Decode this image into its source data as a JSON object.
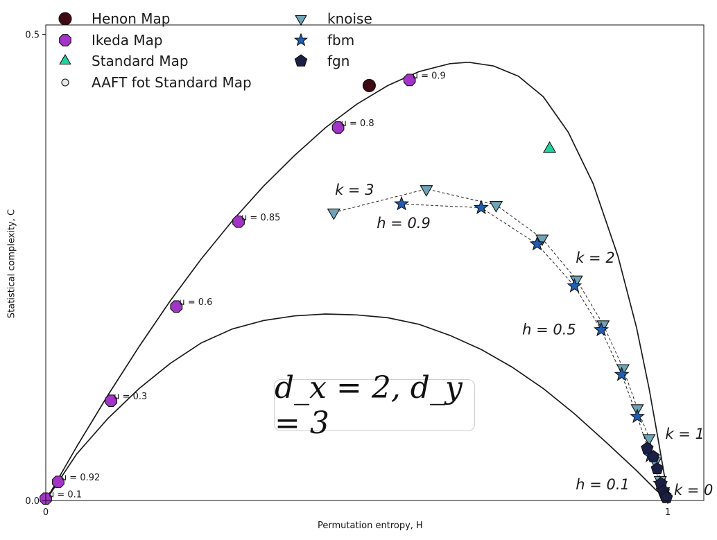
{
  "chart_data": {
    "type": "scatter",
    "xlabel": "Permutation entropy, H",
    "ylabel": "Statistical complexity, C",
    "xlim": [
      0.0,
      1.058
    ],
    "ylim": [
      0.0,
      0.51
    ],
    "xticks": [
      "0",
      "1"
    ],
    "yticks": [
      "0.0",
      "0.5"
    ],
    "grid": false,
    "legend_position": "top-left, two columns",
    "annotation_box": "d_x = 2, d_y = 3",
    "colors": {
      "henon": "#3d0a14",
      "ikeda": "#a334c8",
      "standard": "#1fd3a0",
      "aaft": "#e8e8e8",
      "knoise": "#6fa3b6",
      "fbm": "#1f5eb4",
      "fgn": "#1c1f45",
      "curve": "#1a1a1a"
    },
    "series": [
      {
        "name": "Henon Map",
        "marker": "circle",
        "points": [
          {
            "x": 0.52,
            "y": 0.445
          }
        ]
      },
      {
        "name": "Ikeda Map",
        "marker": "octagon",
        "points": [
          {
            "x": 0.0,
            "y": 0.002,
            "label": "u = 0.1"
          },
          {
            "x": 0.02,
            "y": 0.02,
            "label": "u = 0.92"
          },
          {
            "x": 0.105,
            "y": 0.107,
            "label": "u = 0.3"
          },
          {
            "x": 0.21,
            "y": 0.208,
            "label": "u = 0.6"
          },
          {
            "x": 0.31,
            "y": 0.299,
            "label": "u = 0.85"
          },
          {
            "x": 0.47,
            "y": 0.4,
            "label": "u = 0.8"
          },
          {
            "x": 0.585,
            "y": 0.451,
            "label": "u = 0.9"
          }
        ]
      },
      {
        "name": "Standard Map",
        "marker": "triangle-up",
        "points": [
          {
            "x": 0.81,
            "y": 0.377
          }
        ]
      },
      {
        "name": "AAFT fot Standard Map",
        "marker": "small-circle",
        "points": []
      },
      {
        "name": "knoise",
        "marker": "triangle-down",
        "connected": true,
        "points": [
          {
            "x": 0.463,
            "y": 0.309
          },
          {
            "x": 0.612,
            "y": 0.334
          },
          {
            "x": 0.724,
            "y": 0.317
          },
          {
            "x": 0.798,
            "y": 0.281
          },
          {
            "x": 0.853,
            "y": 0.237
          },
          {
            "x": 0.896,
            "y": 0.189
          },
          {
            "x": 0.928,
            "y": 0.142
          },
          {
            "x": 0.951,
            "y": 0.099
          },
          {
            "x": 0.97,
            "y": 0.067
          },
          {
            "x": 0.98,
            "y": 0.042
          },
          {
            "x": 0.988,
            "y": 0.022
          },
          {
            "x": 0.993,
            "y": 0.01
          }
        ]
      },
      {
        "name": "fbm",
        "marker": "star",
        "connected": true,
        "points": [
          {
            "x": 0.572,
            "y": 0.318
          },
          {
            "x": 0.7,
            "y": 0.314
          },
          {
            "x": 0.79,
            "y": 0.275
          },
          {
            "x": 0.85,
            "y": 0.23
          },
          {
            "x": 0.893,
            "y": 0.183
          },
          {
            "x": 0.926,
            "y": 0.135
          },
          {
            "x": 0.951,
            "y": 0.09
          },
          {
            "x": 0.972,
            "y": 0.048
          },
          {
            "x": 0.988,
            "y": 0.018
          }
        ]
      },
      {
        "name": "fgn",
        "marker": "pentagon",
        "points": [
          {
            "x": 0.967,
            "y": 0.056
          },
          {
            "x": 0.977,
            "y": 0.047
          },
          {
            "x": 0.983,
            "y": 0.034
          },
          {
            "x": 0.989,
            "y": 0.018
          },
          {
            "x": 0.993,
            "y": 0.01
          },
          {
            "x": 0.996,
            "y": 0.005
          },
          {
            "x": 0.998,
            "y": 0.003
          }
        ]
      }
    ],
    "curves": [
      {
        "label": "upper complexity bound",
        "points": [
          [
            0.0,
            0.0
          ],
          [
            0.05,
            0.058
          ],
          [
            0.1,
            0.113
          ],
          [
            0.15,
            0.165
          ],
          [
            0.2,
            0.214
          ],
          [
            0.25,
            0.259
          ],
          [
            0.3,
            0.3
          ],
          [
            0.35,
            0.337
          ],
          [
            0.4,
            0.37
          ],
          [
            0.45,
            0.4
          ],
          [
            0.5,
            0.425
          ],
          [
            0.55,
            0.445
          ],
          [
            0.6,
            0.46
          ],
          [
            0.65,
            0.4685
          ],
          [
            0.68,
            0.47
          ],
          [
            0.72,
            0.466
          ],
          [
            0.76,
            0.455
          ],
          [
            0.8,
            0.433
          ],
          [
            0.84,
            0.395
          ],
          [
            0.88,
            0.34
          ],
          [
            0.92,
            0.262
          ],
          [
            0.95,
            0.185
          ],
          [
            0.97,
            0.12
          ],
          [
            0.985,
            0.064
          ],
          [
            0.995,
            0.025
          ],
          [
            1.0,
            0.0
          ]
        ]
      },
      {
        "label": "lower complexity bound",
        "points": [
          [
            0.0,
            0.0
          ],
          [
            0.05,
            0.05
          ],
          [
            0.1,
            0.088
          ],
          [
            0.15,
            0.12
          ],
          [
            0.2,
            0.147
          ],
          [
            0.25,
            0.169
          ],
          [
            0.3,
            0.184
          ],
          [
            0.35,
            0.193
          ],
          [
            0.4,
            0.198
          ],
          [
            0.45,
            0.2
          ],
          [
            0.5,
            0.199
          ],
          [
            0.55,
            0.196
          ],
          [
            0.6,
            0.189
          ],
          [
            0.65,
            0.177
          ],
          [
            0.7,
            0.162
          ],
          [
            0.75,
            0.143
          ],
          [
            0.8,
            0.12
          ],
          [
            0.85,
            0.093
          ],
          [
            0.9,
            0.063
          ],
          [
            0.95,
            0.032
          ],
          [
            0.98,
            0.012
          ],
          [
            1.0,
            0.0
          ]
        ]
      }
    ],
    "text_annotations": [
      {
        "text": "k = 3",
        "x": 0.465,
        "y": 0.328
      },
      {
        "text": "h = 0.9",
        "x": 0.532,
        "y": 0.292
      },
      {
        "text": "k = 2",
        "x": 0.852,
        "y": 0.255
      },
      {
        "text": "h = 0.5",
        "x": 0.766,
        "y": 0.178
      },
      {
        "text": "k = 1",
        "x": 0.996,
        "y": 0.066
      },
      {
        "text": "h = 0.1",
        "x": 0.852,
        "y": 0.012
      },
      {
        "text": "k = 0",
        "x": 1.01,
        "y": 0.006
      }
    ]
  }
}
